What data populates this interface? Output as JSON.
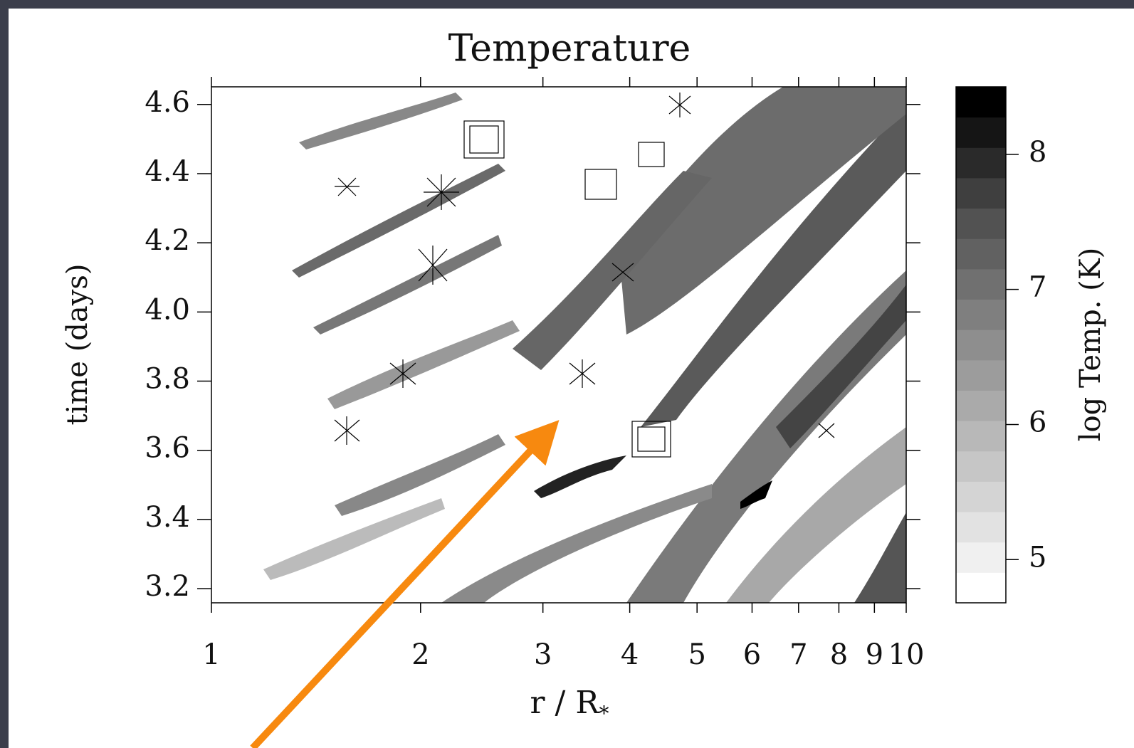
{
  "chart_data": {
    "type": "contour",
    "title": "Temperature",
    "xlabel": "r / R",
    "xlabel_sub": "*",
    "ylabel": "time (days)",
    "xscale": "log",
    "xlim": [
      1,
      10
    ],
    "xticks": [
      1,
      2,
      3,
      4,
      5,
      6,
      7,
      8,
      9,
      10
    ],
    "ylim": [
      3.159,
      4.651
    ],
    "yticks": [
      {
        "value": 3.2,
        "label": "3.2"
      },
      {
        "value": 3.4,
        "label": "3.4"
      },
      {
        "value": 3.6,
        "label": "3.6"
      },
      {
        "value": 3.8,
        "label": "3.8"
      },
      {
        "value": 4.0,
        "label": "4.0"
      },
      {
        "value": 4.2,
        "label": "4.2"
      },
      {
        "value": 4.4,
        "label": "4.4"
      },
      {
        "value": 4.6,
        "label": "4.6"
      }
    ],
    "colorbar": {
      "label": "log Temp. (K)",
      "lim": [
        4.68,
        8.5
      ],
      "ticks": [
        5,
        6,
        7,
        8
      ],
      "colors": [
        "#ffffff",
        "#f0f0f0",
        "#e2e2e2",
        "#d4d4d4",
        "#c6c6c6",
        "#b8b8b8",
        "#aaaaaa",
        "#9c9c9c",
        "#8e8e8e",
        "#7f7f7f",
        "#707070",
        "#616161",
        "#525252",
        "#3f3f3f",
        "#2a2a2a",
        "#151515",
        "#000000"
      ]
    }
  }
}
